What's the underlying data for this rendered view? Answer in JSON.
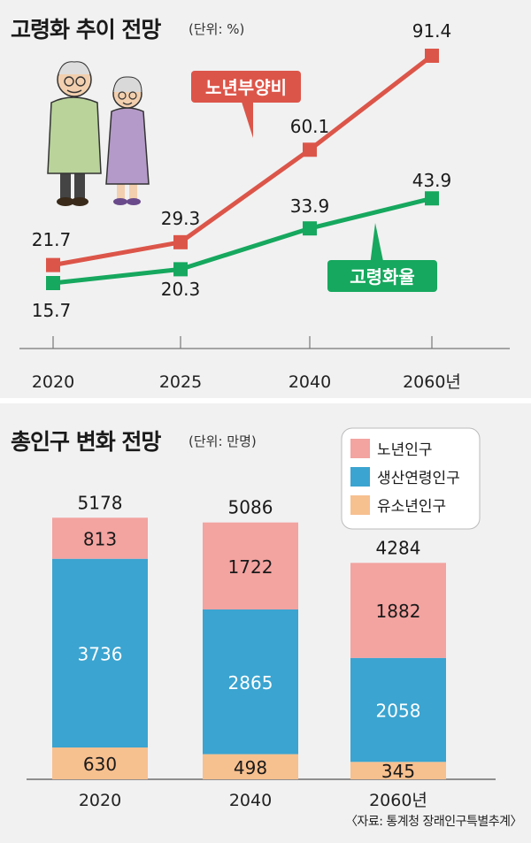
{
  "top_chart": {
    "title": "고령화 추이 전망",
    "unit": "(단위: %)"
  },
  "bottom_chart": {
    "title": "총인구 변화 전망",
    "unit": "(단위: 만명)"
  },
  "source": "〈자료: 통계청 장래인구특별추계〉",
  "colors": {
    "red": "#dc5549",
    "green": "#16a85e",
    "pink": "#f3a3a0",
    "blue": "#3ba4d0",
    "orange": "#f7c08f",
    "panel_bg": "#f1f1f1"
  },
  "chart_data": [
    {
      "type": "line",
      "title": "고령화 추이 전망",
      "unit": "(단위: %)",
      "x": [
        "2020",
        "2025",
        "2040",
        "2060년"
      ],
      "series": [
        {
          "name": "노년부양비",
          "values": [
            21.7,
            29.3,
            60.1,
            91.4
          ],
          "labels": [
            "21.7",
            "29.3",
            "60.1",
            "91.4"
          ],
          "color": "#dc5549"
        },
        {
          "name": "고령화율",
          "values": [
            15.7,
            20.3,
            33.9,
            43.9
          ],
          "labels": [
            "15.7",
            "20.3",
            "33.9",
            "43.9"
          ],
          "color": "#16a85e"
        }
      ],
      "legend": "callouts next to lines",
      "grid": false
    },
    {
      "type": "bar",
      "stacked": true,
      "title": "총인구 변화 전망",
      "unit": "(단위: 만명)",
      "categories": [
        "2020",
        "2040",
        "2060년"
      ],
      "totals": [
        "5178",
        "5086",
        "4284"
      ],
      "series": [
        {
          "name": "노년인구",
          "values": [
            813,
            1722,
            1882
          ],
          "color": "#f3a3a0"
        },
        {
          "name": "생산연령인구",
          "values": [
            3736,
            2865,
            2058
          ],
          "color": "#3ba4d0"
        },
        {
          "name": "유소년인구",
          "values": [
            630,
            498,
            345
          ],
          "color": "#f7c08f"
        }
      ],
      "legend": "top-right",
      "grid": false
    }
  ]
}
